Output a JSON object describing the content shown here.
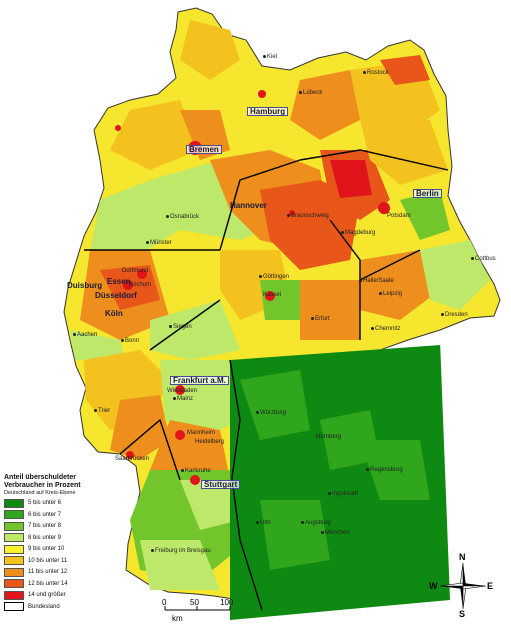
{
  "legend": {
    "title_line1": "Anteil überschuldeter",
    "title_line2": "Verbraucher in Prozent",
    "subtitle": "Deutschland auf Kreis-Ebene",
    "classes": [
      {
        "label": "5 bis unter 6",
        "color": "#0e8a12"
      },
      {
        "label": "6 bis unter 7",
        "color": "#2fa61c"
      },
      {
        "label": "7 bis unter 8",
        "color": "#72c62c"
      },
      {
        "label": "8 bis unter 9",
        "color": "#bde86a"
      },
      {
        "label": "9 bis unter 10",
        "color": "#f6f22e"
      },
      {
        "label": "10 bis unter 11",
        "color": "#f4c21e"
      },
      {
        "label": "11 bis unter 12",
        "color": "#ee8e1c"
      },
      {
        "label": "12 bis unter 14",
        "color": "#e8561a"
      },
      {
        "label": "14 und größer",
        "color": "#e0141a"
      },
      {
        "label": "Bundesland",
        "color": "#ffffff"
      }
    ]
  },
  "scale": {
    "unit": "km",
    "ticks": [
      "0",
      "50",
      "100"
    ]
  },
  "compass": {
    "n": "N",
    "e": "E",
    "s": "S",
    "w": "W"
  },
  "cities": {
    "kiel": "Kiel",
    "rostock": "Rostock",
    "luebeck": "Lübeck",
    "hamburg": "Hamburg",
    "bremen": "Bremen",
    "berlin": "Berlin",
    "hannover": "Hannover",
    "osnabrueck": "Osnabrück",
    "braunschweig": "Braunschweig",
    "magdeburg": "Magdeburg",
    "muenster": "Münster",
    "potsdam": "Potsdam",
    "cottbus": "Cottbus",
    "dortmund": "Dortmund",
    "duisburg": "Duisburg",
    "essen": "Essen",
    "bochum": "Bochum",
    "duesseldorf": "Düsseldorf",
    "koeln": "Köln",
    "aachen": "Aachen",
    "bonn": "Bonn",
    "siegen": "Siegen",
    "goettingen": "Göttingen",
    "kassel": "Kassel",
    "halle": "Halle/Saale",
    "leipzig": "Leipzig",
    "erfurt": "Erfurt",
    "chemnitz": "Chemnitz",
    "dresden": "Dresden",
    "frankfurt": "Frankfurt a.M.",
    "wiesbaden": "Wiesbaden",
    "mainz": "Mainz",
    "trier": "Trier",
    "wuerzburg": "Würzburg",
    "mannheim": "Mannheim",
    "heidelberg": "Heidelberg",
    "saarbruecken": "Saarbrücken",
    "nuernberg": "Nürnberg",
    "regensburg": "Regensburg",
    "karlsruhe": "Karlsruhe",
    "stuttgart": "Stuttgart",
    "ingolstadt": "Ingolstadt",
    "ulm": "Ulm",
    "augsburg": "Augsburg",
    "muenchen": "München",
    "freiburg": "Freiburg im Breisgau"
  }
}
